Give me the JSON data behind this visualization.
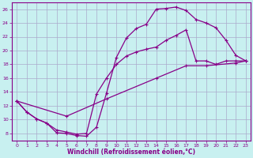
{
  "xlabel": "Windchill (Refroidissement éolien,°C)",
  "background_color": "#c8f0f0",
  "grid_color": "#aaaacc",
  "line_color": "#880088",
  "xlim": [
    -0.5,
    23.5
  ],
  "ylim": [
    7,
    27
  ],
  "yticks": [
    8,
    10,
    12,
    14,
    16,
    18,
    20,
    22,
    24,
    26
  ],
  "xticks": [
    0,
    1,
    2,
    3,
    4,
    5,
    6,
    7,
    8,
    9,
    10,
    11,
    12,
    13,
    14,
    15,
    16,
    17,
    18,
    19,
    20,
    21,
    22,
    23
  ],
  "curve1_x": [
    0,
    1,
    2,
    3,
    4,
    5,
    6,
    7,
    8,
    9,
    10,
    11,
    12,
    13,
    14,
    15,
    16,
    17,
    18,
    19,
    20,
    21,
    22,
    23
  ],
  "curve1_y": [
    12.7,
    11.1,
    10.1,
    9.5,
    8.1,
    8.0,
    7.7,
    7.6,
    8.9,
    13.8,
    19.0,
    21.8,
    23.2,
    23.8,
    26.0,
    26.1,
    26.3,
    25.8,
    24.5,
    24.0,
    23.3,
    21.5,
    19.3,
    18.5
  ],
  "curve2_x": [
    0,
    1,
    2,
    3,
    4,
    5,
    6,
    7,
    8,
    9,
    10,
    11,
    12,
    13,
    14,
    15,
    16,
    17,
    18,
    19,
    20,
    21,
    22,
    23
  ],
  "curve2_y": [
    12.7,
    11.1,
    10.1,
    9.5,
    8.5,
    8.2,
    7.9,
    8.0,
    13.7,
    16.0,
    18.0,
    19.2,
    19.8,
    20.2,
    20.5,
    21.5,
    22.2,
    23.0,
    18.5,
    18.5,
    18.0,
    18.5,
    18.5,
    18.5
  ],
  "curve3_x": [
    0,
    5,
    9,
    14,
    17,
    19,
    22,
    23
  ],
  "curve3_y": [
    12.7,
    10.5,
    13.0,
    16.0,
    17.8,
    17.8,
    18.2,
    18.5
  ]
}
